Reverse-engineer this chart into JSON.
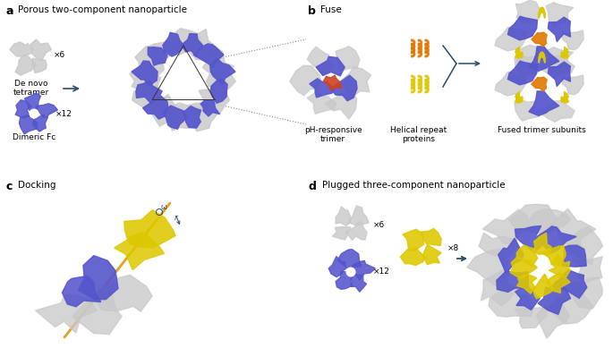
{
  "panel_a_title": "Porous two-component nanoparticle",
  "panel_b_title": "Fuse",
  "panel_c_title": "Docking",
  "panel_d_title": "Plugged three-component nanoparticle",
  "label_a": "a",
  "label_b": "b",
  "label_c": "c",
  "label_d": "d",
  "de_novo_tetramer": "De novo\ntetramer",
  "dimeric_fc": "Dimeric Fc",
  "x6": "×6",
  "x12": "×12",
  "x8": "×8",
  "x6_d": "×6",
  "x12_d": "×12",
  "ph_responsive": "pH-responsive\ntrimer",
  "helical_repeat": "Helical repeat\nproteins",
  "fused_trimer": "Fused trimer subunits",
  "bg_color": "#ffffff",
  "blue_color": "#5555cc",
  "gray_color": "#c8c8c8",
  "gray_dark": "#a0a0a0",
  "yellow_color": "#ddc800",
  "orange_color": "#e07800",
  "red_orange": "#cc4422",
  "dark_arrow": "#2a4a6a",
  "title_fontsize": 7.5,
  "label_fontsize": 9,
  "small_fontsize": 6.5
}
